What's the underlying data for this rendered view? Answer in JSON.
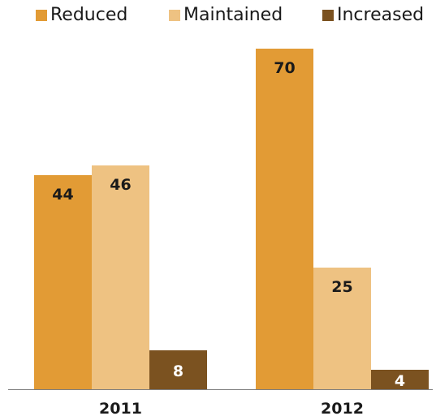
{
  "chart_data": {
    "type": "bar",
    "categories": [
      "2011",
      "2012"
    ],
    "series": [
      {
        "name": "Reduced",
        "color": "#E29B35",
        "values": [
          44,
          70
        ]
      },
      {
        "name": "Maintained",
        "color": "#EEC282",
        "values": [
          46,
          25
        ]
      },
      {
        "name": "Increased",
        "color": "#7B5220",
        "values": [
          8,
          4
        ]
      }
    ],
    "ylim": [
      0,
      72
    ],
    "grid": false,
    "legend_position": "top",
    "label_text_color": "#1a1a1a",
    "label_text_color_dark_bar": "#ffffff"
  }
}
